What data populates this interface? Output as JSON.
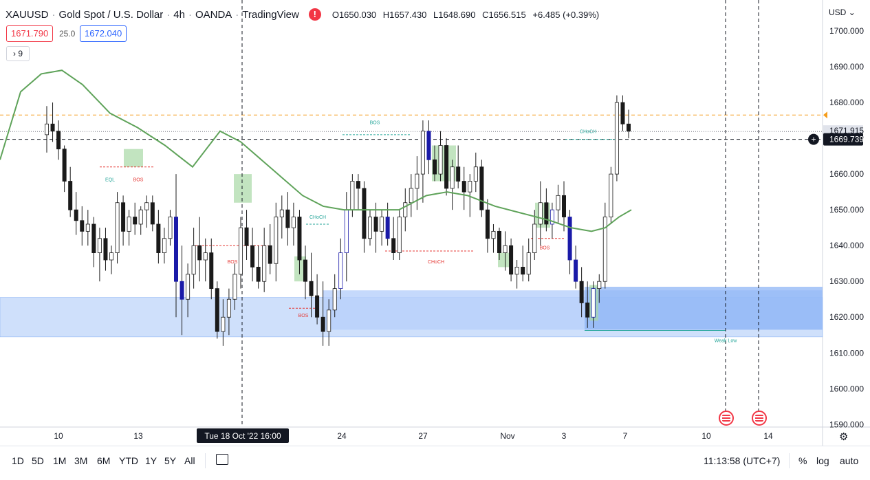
{
  "header": {
    "symbol": "XAUUSD",
    "name": "Gold Spot / U.S. Dollar",
    "interval": "4h",
    "exchange": "OANDA",
    "source": "TradingView",
    "open": "O1650.030",
    "high": "H1657.430",
    "low": "L1648.690",
    "close": "C1656.515",
    "change": "+6.485 (+0.39%)"
  },
  "trade": {
    "sell_price": "1671.790",
    "spread": "25.0",
    "buy_price": "1672.040"
  },
  "indicator_toggle": "9",
  "currency": "USD",
  "price_axis": {
    "labels": [
      "1700.000",
      "1690.000",
      "1680.000",
      "1670.000",
      "1660.000",
      "1650.000",
      "1640.000",
      "1630.000",
      "1620.000",
      "1610.000",
      "1600.000",
      "1590.000"
    ],
    "current_price_label": "1671.915",
    "crosshair_label": "1669.739"
  },
  "time_axis": {
    "labels": [
      "10",
      "13",
      "24",
      "27",
      "Nov",
      "3",
      "7",
      "10",
      "14"
    ],
    "crosshair_label": "Tue 18 Oct '22   16:00"
  },
  "annotations": [
    "EQL",
    "BOS",
    "BOS",
    "BOS",
    "CHoCH",
    "BOS",
    "CHoCH",
    "CHoCH",
    "BOS",
    "Weak Low"
  ],
  "bottom_bar": {
    "ranges": [
      "1D",
      "5D",
      "1M",
      "3M",
      "6M",
      "YTD",
      "1Y",
      "5Y",
      "All"
    ],
    "clock": "11:13:58 (UTC+7)",
    "percent": "%",
    "log": "log",
    "auto": "auto"
  },
  "colors": {
    "bull": "#ffffff",
    "bear": "#1a1a1a",
    "navy": "#1a1aa8",
    "ma": "#5fa35a",
    "demand_zone": "#8fb5f5",
    "supply_box": "#a8d8a5",
    "bos_red": "#e53935",
    "choch_teal": "#26a69a"
  },
  "chart_data": {
    "type": "candlestick",
    "ylim": [
      1588,
      1705
    ],
    "candles": [
      [
        1671,
        1679,
        1666,
        1674
      ],
      [
        1674,
        1680,
        1669,
        1672
      ],
      [
        1672,
        1675,
        1664,
        1667
      ],
      [
        1667,
        1668,
        1655,
        1658
      ],
      [
        1658,
        1662,
        1648,
        1650
      ],
      [
        1650,
        1655,
        1643,
        1647
      ],
      [
        1647,
        1651,
        1640,
        1644
      ],
      [
        1644,
        1650,
        1640,
        1646
      ],
      [
        1646,
        1648,
        1634,
        1638
      ],
      [
        1638,
        1645,
        1630,
        1642
      ],
      [
        1642,
        1645,
        1633,
        1636
      ],
      [
        1636,
        1640,
        1632,
        1638
      ],
      [
        1638,
        1655,
        1635,
        1652
      ],
      [
        1652,
        1654,
        1640,
        1644
      ],
      [
        1644,
        1650,
        1640,
        1648
      ],
      [
        1648,
        1652,
        1643,
        1646
      ],
      [
        1646,
        1651,
        1643,
        1650
      ],
      [
        1650,
        1654,
        1645,
        1652
      ],
      [
        1652,
        1654,
        1644,
        1646
      ],
      [
        1646,
        1650,
        1635,
        1638
      ],
      [
        1638,
        1645,
        1635,
        1642
      ],
      [
        1642,
        1650,
        1640,
        1648
      ],
      [
        1648,
        1660,
        1620,
        1630
      ],
      [
        1630,
        1640,
        1615,
        1625
      ],
      [
        1625,
        1635,
        1620,
        1632
      ],
      [
        1632,
        1645,
        1628,
        1640
      ],
      [
        1640,
        1648,
        1630,
        1636
      ],
      [
        1636,
        1642,
        1630,
        1638
      ],
      [
        1638,
        1642,
        1625,
        1628
      ],
      [
        1628,
        1630,
        1614,
        1616
      ],
      [
        1616,
        1625,
        1612,
        1620
      ],
      [
        1620,
        1628,
        1615,
        1625
      ],
      [
        1625,
        1635,
        1622,
        1632
      ],
      [
        1632,
        1648,
        1628,
        1645
      ],
      [
        1645,
        1650,
        1636,
        1640
      ],
      [
        1640,
        1645,
        1630,
        1634
      ],
      [
        1634,
        1640,
        1628,
        1630
      ],
      [
        1630,
        1645,
        1627,
        1640
      ],
      [
        1640,
        1646,
        1632,
        1635
      ],
      [
        1635,
        1652,
        1630,
        1648
      ],
      [
        1648,
        1654,
        1642,
        1650
      ],
      [
        1650,
        1655,
        1640,
        1645
      ],
      [
        1645,
        1652,
        1640,
        1648
      ],
      [
        1648,
        1650,
        1632,
        1636
      ],
      [
        1636,
        1640,
        1625,
        1630
      ],
      [
        1630,
        1638,
        1620,
        1626
      ],
      [
        1626,
        1632,
        1618,
        1620
      ],
      [
        1620,
        1630,
        1612,
        1616
      ],
      [
        1616,
        1625,
        1612,
        1622
      ],
      [
        1622,
        1632,
        1620,
        1628
      ],
      [
        1628,
        1642,
        1625,
        1638
      ],
      [
        1638,
        1655,
        1630,
        1650
      ],
      [
        1650,
        1660,
        1648,
        1658
      ],
      [
        1658,
        1660,
        1650,
        1656
      ],
      [
        1656,
        1658,
        1638,
        1642
      ],
      [
        1642,
        1650,
        1640,
        1648
      ],
      [
        1648,
        1652,
        1638,
        1644
      ],
      [
        1644,
        1650,
        1640,
        1648
      ],
      [
        1648,
        1652,
        1640,
        1642
      ],
      [
        1642,
        1648,
        1636,
        1638
      ],
      [
        1638,
        1650,
        1636,
        1648
      ],
      [
        1648,
        1656,
        1644,
        1652
      ],
      [
        1652,
        1660,
        1648,
        1656
      ],
      [
        1656,
        1665,
        1650,
        1660
      ],
      [
        1660,
        1675,
        1652,
        1672
      ],
      [
        1672,
        1675,
        1660,
        1664
      ],
      [
        1664,
        1668,
        1658,
        1660
      ],
      [
        1660,
        1672,
        1658,
        1668
      ],
      [
        1668,
        1670,
        1654,
        1656
      ],
      [
        1656,
        1664,
        1650,
        1662
      ],
      [
        1662,
        1668,
        1656,
        1658
      ],
      [
        1658,
        1662,
        1650,
        1655
      ],
      [
        1655,
        1660,
        1648,
        1658
      ],
      [
        1658,
        1666,
        1655,
        1662
      ],
      [
        1662,
        1664,
        1648,
        1650
      ],
      [
        1650,
        1653,
        1638,
        1642
      ],
      [
        1642,
        1646,
        1638,
        1644
      ],
      [
        1644,
        1645,
        1636,
        1638
      ],
      [
        1638,
        1644,
        1633,
        1640
      ],
      [
        1640,
        1642,
        1630,
        1632
      ],
      [
        1632,
        1636,
        1628,
        1634
      ],
      [
        1634,
        1640,
        1630,
        1632
      ],
      [
        1632,
        1642,
        1630,
        1638
      ],
      [
        1638,
        1650,
        1636,
        1646
      ],
      [
        1646,
        1658,
        1640,
        1652
      ],
      [
        1652,
        1656,
        1644,
        1646
      ],
      [
        1646,
        1652,
        1642,
        1650
      ],
      [
        1650,
        1657,
        1646,
        1654
      ],
      [
        1654,
        1658,
        1644,
        1648
      ],
      [
        1648,
        1650,
        1632,
        1636
      ],
      [
        1636,
        1640,
        1628,
        1630
      ],
      [
        1630,
        1634,
        1620,
        1624
      ],
      [
        1624,
        1630,
        1617,
        1620
      ],
      [
        1620,
        1630,
        1617,
        1628
      ],
      [
        1628,
        1632,
        1624,
        1630
      ],
      [
        1630,
        1652,
        1628,
        1648
      ],
      [
        1648,
        1662,
        1646,
        1660
      ],
      [
        1660,
        1682,
        1658,
        1680
      ],
      [
        1680,
        1682,
        1672,
        1674
      ],
      [
        1674,
        1678,
        1670,
        1672
      ]
    ]
  }
}
